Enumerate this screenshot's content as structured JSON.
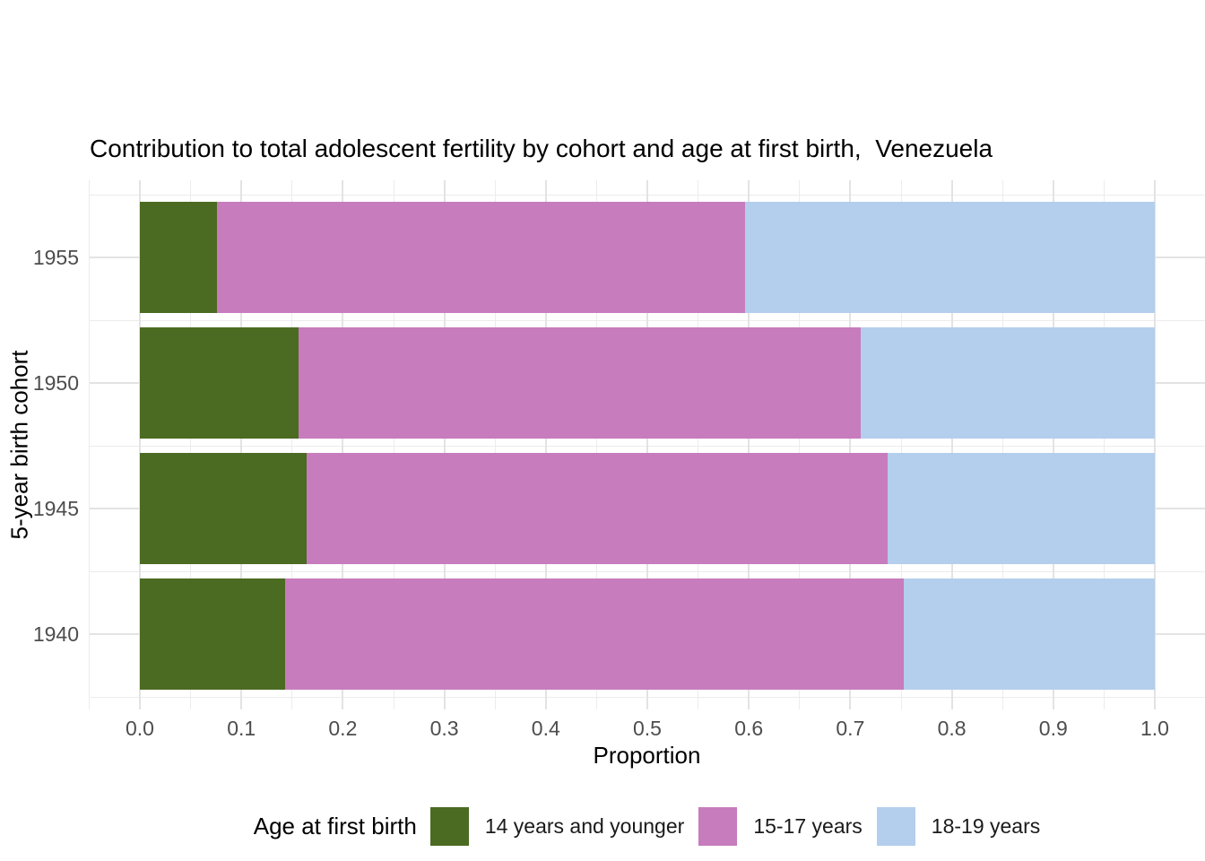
{
  "title": "Contribution to total adolescent fertility by cohort and age at first birth,  Venezuela",
  "axes": {
    "x_title": "Proportion",
    "y_title": "5-year birth cohort"
  },
  "legend": {
    "title": "Age at first birth"
  },
  "chart_data": {
    "type": "bar",
    "orientation": "horizontal",
    "stacked": true,
    "title": "Contribution to total adolescent fertility by cohort and age at first birth,  Venezuela",
    "xlabel": "Proportion",
    "ylabel": "5-year birth cohort",
    "categories": [
      "1955",
      "1950",
      "1945",
      "1940"
    ],
    "series": [
      {
        "name": "14 years and younger",
        "color": "#4C6B22",
        "values": [
          0.076,
          0.156,
          0.164,
          0.143
        ]
      },
      {
        "name": "15-17 years",
        "color": "#C77CBD",
        "values": [
          0.52,
          0.554,
          0.573,
          0.61
        ]
      },
      {
        "name": "18-19 years",
        "color": "#B4CEED",
        "values": [
          0.404,
          0.29,
          0.263,
          0.247
        ]
      }
    ],
    "x_ticks": [
      "0.0",
      "0.1",
      "0.2",
      "0.3",
      "0.4",
      "0.5",
      "0.6",
      "0.7",
      "0.8",
      "0.9",
      "1.0"
    ],
    "xlim": [
      0,
      1
    ],
    "grid": true,
    "legend_title": "Age at first birth",
    "legend_position": "bottom"
  }
}
